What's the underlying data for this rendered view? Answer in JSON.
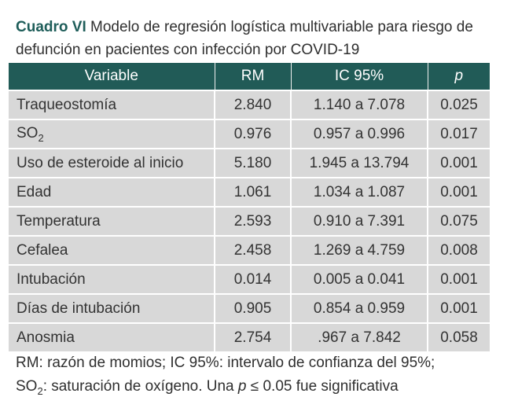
{
  "caption": {
    "label": "Cuadro VI",
    "text": "Modelo de regresión logística multivariable para riesgo de defunción en pacientes con infección por COVID-19"
  },
  "table": {
    "headers": [
      "Variable",
      "RM",
      "IC 95%",
      "p"
    ],
    "rows": [
      {
        "variable": "Traqueostomía",
        "variable_sub": "",
        "rm": "2.840",
        "ic": "1.140 a 7.078",
        "p": "0.025"
      },
      {
        "variable": "SO",
        "variable_sub": "2",
        "rm": "0.976",
        "ic": "0.957 a 0.996",
        "p": "0.017"
      },
      {
        "variable": "Uso de esteroide al inicio",
        "variable_sub": "",
        "rm": "5.180",
        "ic": "1.945 a 13.794",
        "p": "0.001"
      },
      {
        "variable": "Edad",
        "variable_sub": "",
        "rm": "1.061",
        "ic": "1.034 a 1.087",
        "p": "0.001"
      },
      {
        "variable": "Temperatura",
        "variable_sub": "",
        "rm": "2.593",
        "ic": "0.910 a 7.391",
        "p": "0.075"
      },
      {
        "variable": "Cefalea",
        "variable_sub": "",
        "rm": "2.458",
        "ic": "1.269 a 4.759",
        "p": "0.008"
      },
      {
        "variable": "Intubación",
        "variable_sub": "",
        "rm": "0.014",
        "ic": "0.005 a 0.041",
        "p": "0.001"
      },
      {
        "variable": "Días de intubación",
        "variable_sub": "",
        "rm": "0.905",
        "ic": "0.854 a 0.959",
        "p": "0.001"
      },
      {
        "variable": "Anosmia",
        "variable_sub": "",
        "rm": "2.754",
        "ic": ".967 a 7.842",
        "p": "0.058"
      }
    ]
  },
  "footnote": {
    "line1": "RM: razón de momios; IC 95%: intervalo de confianza del 95%;",
    "line2_a": "SO",
    "line2_sub": "2",
    "line2_b": ": saturación de oxígeno. Una ",
    "line2_p": "p",
    "line2_c": " ≤ 0.05 fue significativa"
  },
  "colors": {
    "header_bg": "#215b57",
    "row_bg": "#d8d8d8",
    "caption_label": "#1f5e5a"
  }
}
